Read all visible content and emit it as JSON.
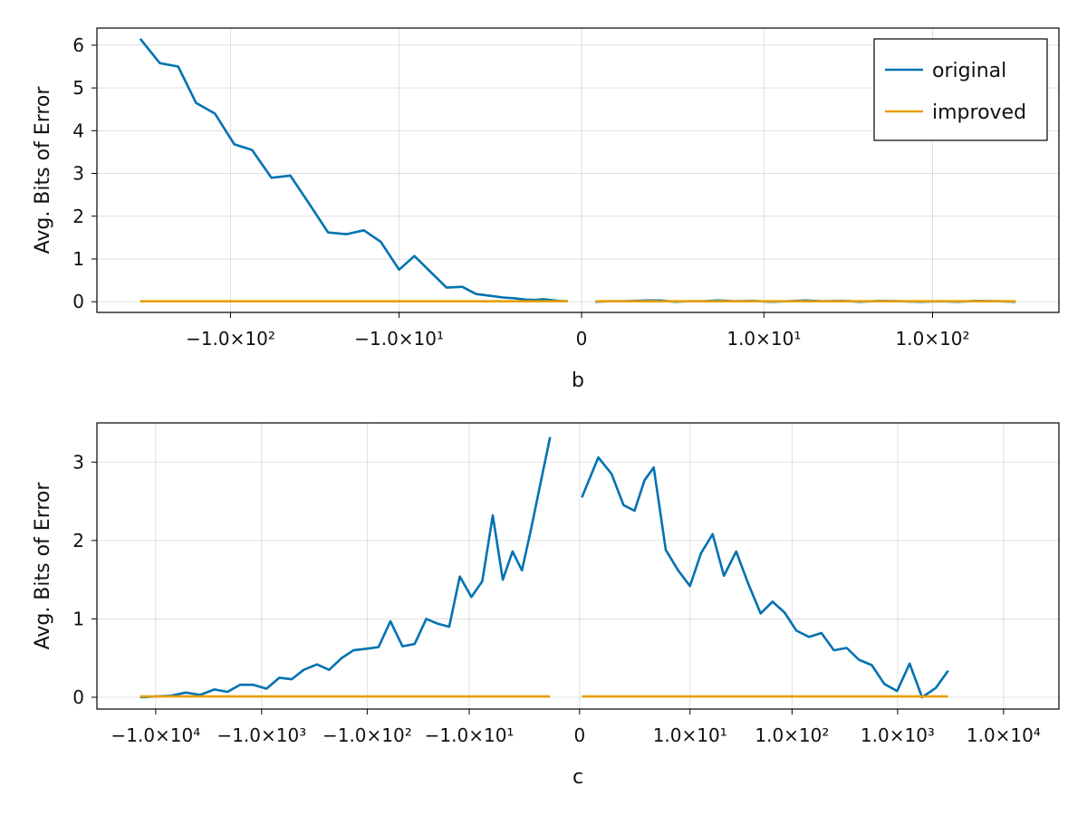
{
  "colors": {
    "original": "#0072b2",
    "improved": "#e69f00"
  },
  "chart_data": [
    {
      "type": "line",
      "xlabel": "b",
      "ylabel": "Avg. Bits of Error",
      "x_scale": "symlog",
      "ylim": [
        -0.25,
        6.4
      ],
      "y_ticks": [
        0,
        1,
        2,
        3,
        4,
        5,
        6
      ],
      "x_ticks": [
        {
          "label": "−1.0×10²",
          "value": -100
        },
        {
          "label": "−1.0×10¹",
          "value": -10
        },
        {
          "label": "0",
          "value": 0
        },
        {
          "label": "1.0×10¹",
          "value": 10
        },
        {
          "label": "1.0×10²",
          "value": 100
        }
      ],
      "legend": {
        "placement": "top-right",
        "entries": [
          "original",
          "improved"
        ]
      },
      "series": [
        {
          "name": "original",
          "segments": [
            [
              [
                -330,
                6.15
              ],
              [
                -255,
                5.58
              ],
              [
                -200,
                5.5
              ],
              [
                -158,
                4.65
              ],
              [
                -123,
                4.4
              ],
              [
                -95,
                3.68
              ],
              [
                -75,
                3.55
              ],
              [
                -58,
                2.9
              ],
              [
                -45,
                2.95
              ],
              [
                -35,
                2.3
              ],
              [
                -27,
                1.62
              ],
              [
                -21,
                1.58
              ],
              [
                -16.5,
                1.67
              ],
              [
                -13,
                1.4
              ],
              [
                -10,
                0.75
              ],
              [
                -8,
                1.07
              ],
              [
                -6.3,
                0.7
              ],
              [
                -4.9,
                0.33
              ],
              [
                -3.8,
                0.35
              ],
              [
                -3,
                0.18
              ],
              [
                -2.35,
                0.14
              ],
              [
                -1.8,
                0.1
              ],
              [
                -1.4,
                0.08
              ],
              [
                -1.1,
                0.05
              ],
              [
                -0.85,
                0.04
              ],
              [
                -0.65,
                0.06
              ],
              [
                -0.5,
                0.04
              ],
              [
                -0.35,
                0.02
              ],
              [
                -0.2,
                0.01
              ]
            ],
            [
              [
                0.2,
                0.0
              ],
              [
                0.4,
                0.01
              ],
              [
                0.7,
                0.01
              ],
              [
                1.0,
                0.02
              ],
              [
                1.4,
                0.03
              ],
              [
                1.8,
                0.03
              ],
              [
                2.4,
                0.0
              ],
              [
                3.0,
                0.01
              ],
              [
                4.0,
                0.01
              ],
              [
                5.0,
                0.03
              ],
              [
                6.5,
                0.01
              ],
              [
                8.5,
                0.02
              ],
              [
                11,
                0.0
              ],
              [
                14,
                0.01
              ],
              [
                18,
                0.03
              ],
              [
                23,
                0.01
              ],
              [
                30,
                0.02
              ],
              [
                38,
                0.0
              ],
              [
                50,
                0.02
              ],
              [
                65,
                0.01
              ],
              [
                85,
                0.0
              ],
              [
                110,
                0.01
              ],
              [
                140,
                0.0
              ],
              [
                180,
                0.02
              ],
              [
                240,
                0.01
              ],
              [
                300,
                0.0
              ]
            ]
          ]
        },
        {
          "name": "improved",
          "segments": [
            [
              [
                -330,
                0.01
              ],
              [
                -0.2,
                0.01
              ]
            ],
            [
              [
                0.2,
                0.01
              ],
              [
                300,
                0.01
              ]
            ]
          ]
        }
      ]
    },
    {
      "type": "line",
      "xlabel": "c",
      "ylabel": "Avg. Bits of Error",
      "x_scale": "symlog",
      "ylim": [
        -0.15,
        3.5
      ],
      "y_ticks": [
        0,
        1,
        2,
        3
      ],
      "x_ticks": [
        {
          "label": "−1.0×10⁴",
          "value": -10000
        },
        {
          "label": "−1.0×10³",
          "value": -1000
        },
        {
          "label": "−1.0×10²",
          "value": -100
        },
        {
          "label": "−1.0×10¹",
          "value": -10
        },
        {
          "label": "0",
          "value": 0
        },
        {
          "label": "1.0×10¹",
          "value": 10
        },
        {
          "label": "1.0×10²",
          "value": 100
        },
        {
          "label": "1.0×10³",
          "value": 1000
        },
        {
          "label": "1.0×10⁴",
          "value": 10000
        }
      ],
      "series": [
        {
          "name": "original",
          "segments": [
            [
              [
                -14000,
                0.0
              ],
              [
                -10000,
                0.01
              ],
              [
                -7200,
                0.02
              ],
              [
                -5200,
                0.06
              ],
              [
                -3800,
                0.03
              ],
              [
                -2800,
                0.1
              ],
              [
                -2100,
                0.07
              ],
              [
                -1600,
                0.16
              ],
              [
                -1200,
                0.16
              ],
              [
                -900,
                0.11
              ],
              [
                -680,
                0.25
              ],
              [
                -520,
                0.23
              ],
              [
                -400,
                0.35
              ],
              [
                -300,
                0.42
              ],
              [
                -230,
                0.35
              ],
              [
                -175,
                0.5
              ],
              [
                -135,
                0.6
              ],
              [
                -100,
                0.62
              ],
              [
                -78,
                0.64
              ],
              [
                -60,
                0.97
              ],
              [
                -46,
                0.65
              ],
              [
                -35,
                0.68
              ],
              [
                -27,
                1.0
              ],
              [
                -21,
                0.94
              ],
              [
                -16,
                0.9
              ],
              [
                -12.5,
                1.54
              ],
              [
                -9.5,
                1.28
              ],
              [
                -7.3,
                1.48
              ],
              [
                -5.6,
                2.32
              ],
              [
                -4.3,
                1.5
              ],
              [
                -3.3,
                1.86
              ],
              [
                -2.5,
                1.62
              ],
              [
                -1.9,
                2.12
              ],
              [
                -1.3,
                2.78
              ],
              [
                -0.9,
                3.32
              ]
            ],
            [
              [
                0.05,
                2.55
              ],
              [
                0.5,
                3.06
              ],
              [
                1.0,
                2.85
              ],
              [
                1.6,
                2.45
              ],
              [
                2.3,
                2.38
              ],
              [
                3.1,
                2.77
              ],
              [
                4.0,
                2.93
              ],
              [
                5.5,
                1.88
              ],
              [
                7.5,
                1.62
              ],
              [
                10,
                1.42
              ],
              [
                13,
                1.84
              ],
              [
                17,
                2.08
              ],
              [
                22,
                1.55
              ],
              [
                29,
                1.86
              ],
              [
                38,
                1.45
              ],
              [
                50,
                1.07
              ],
              [
                65,
                1.22
              ],
              [
                85,
                1.08
              ],
              [
                110,
                0.85
              ],
              [
                145,
                0.77
              ],
              [
                190,
                0.82
              ],
              [
                250,
                0.6
              ],
              [
                330,
                0.63
              ],
              [
                430,
                0.48
              ],
              [
                570,
                0.41
              ],
              [
                750,
                0.17
              ],
              [
                990,
                0.08
              ],
              [
                1300,
                0.43
              ],
              [
                1700,
                0.0
              ],
              [
                2300,
                0.12
              ],
              [
                3000,
                0.34
              ]
            ]
          ]
        },
        {
          "name": "improved",
          "segments": [
            [
              [
                -14000,
                0.01
              ],
              [
                -0.9,
                0.01
              ]
            ],
            [
              [
                0.05,
                0.01
              ],
              [
                3000,
                0.01
              ]
            ]
          ]
        }
      ]
    }
  ]
}
